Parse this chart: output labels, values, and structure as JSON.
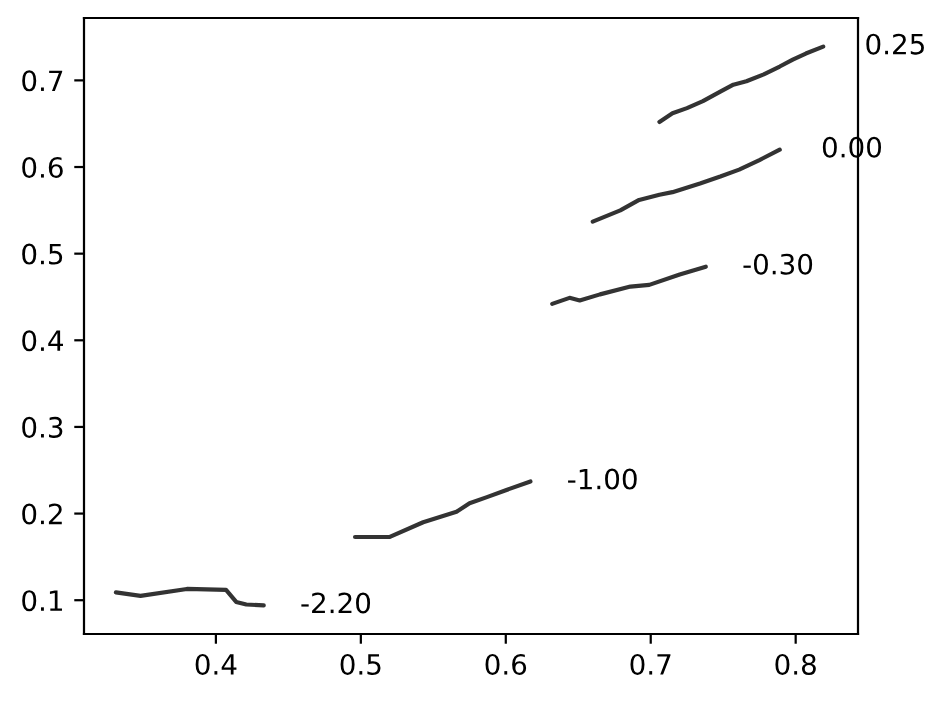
{
  "chart_data": {
    "type": "line",
    "series": [
      {
        "name": "0.25",
        "color": "#333333",
        "x": [
          0.706,
          0.715,
          0.725,
          0.736,
          0.748,
          0.757,
          0.766,
          0.778,
          0.789,
          0.798,
          0.807,
          0.819
        ],
        "values": [
          0.652,
          0.662,
          0.668,
          0.676,
          0.687,
          0.695,
          0.699,
          0.707,
          0.716,
          0.724,
          0.731,
          0.739
        ]
      },
      {
        "name": "0.00",
        "color": "#333333",
        "x": [
          0.66,
          0.679,
          0.692,
          0.706,
          0.715,
          0.734,
          0.748,
          0.761,
          0.775,
          0.789
        ],
        "values": [
          0.537,
          0.55,
          0.562,
          0.568,
          0.571,
          0.581,
          0.589,
          0.597,
          0.608,
          0.62
        ]
      },
      {
        "name": "-0.30",
        "color": "#333333",
        "x": [
          0.632,
          0.644,
          0.651,
          0.665,
          0.686,
          0.699,
          0.72,
          0.738
        ],
        "values": [
          0.442,
          0.449,
          0.446,
          0.453,
          0.462,
          0.464,
          0.476,
          0.485
        ]
      },
      {
        "name": "-1.00",
        "color": "#333333",
        "x": [
          0.496,
          0.52,
          0.543,
          0.566,
          0.575,
          0.587,
          0.6,
          0.617
        ],
        "values": [
          0.173,
          0.173,
          0.19,
          0.202,
          0.212,
          0.219,
          0.227,
          0.237
        ]
      },
      {
        "name": "-2.20",
        "color": "#333333",
        "x": [
          0.331,
          0.348,
          0.38,
          0.407,
          0.414,
          0.421,
          0.433
        ],
        "values": [
          0.109,
          0.105,
          0.113,
          0.112,
          0.098,
          0.095,
          0.094
        ]
      }
    ],
    "xlim": [
      0.309,
      0.843
    ],
    "ylim": [
      0.061,
      0.772
    ],
    "xticks": [
      0.4,
      0.5,
      0.6,
      0.7,
      0.8
    ],
    "yticks": [
      0.1,
      0.2,
      0.3,
      0.4,
      0.5,
      0.6,
      0.7
    ],
    "grid": false,
    "legend": false
  }
}
